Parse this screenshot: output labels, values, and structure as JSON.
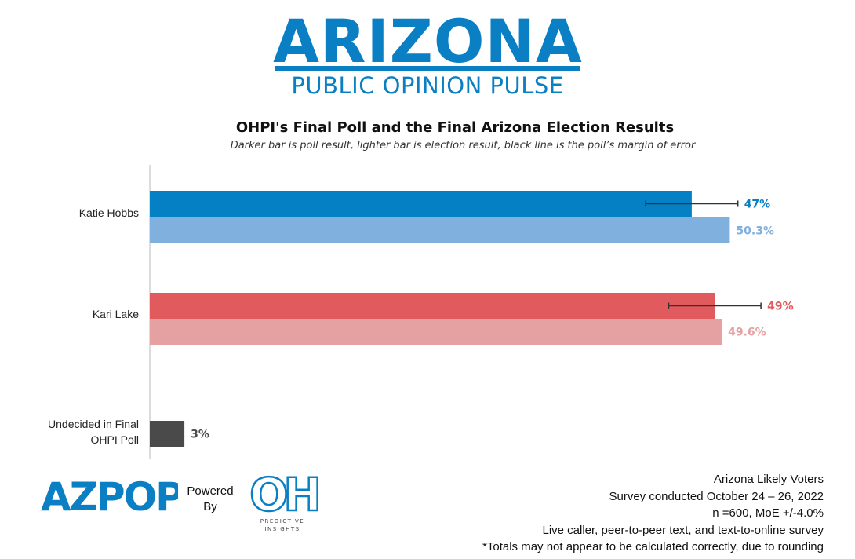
{
  "brand": {
    "title": "ARIZONA",
    "subtitle": "PUBLIC OPINION PULSE",
    "color": "#0b7fc3"
  },
  "chart_data": {
    "type": "bar",
    "orientation": "horizontal",
    "title": "OHPI's Final Poll and the Final Arizona Election Results",
    "subtitle": "Darker bar is poll result, lighter bar is election result, black line is the poll’s margin of error",
    "xlim": [
      0,
      52
    ],
    "grid": false,
    "legend": "none",
    "categories": [
      "Katie Hobbs",
      "Kari Lake",
      "Undecided in Final OHPI Poll"
    ],
    "bars": [
      {
        "category": "Katie Hobbs",
        "kind": "poll",
        "value": 47,
        "label": "47%",
        "color": "#0680c4",
        "label_color": "#0680c4",
        "error": [
          43,
          51
        ]
      },
      {
        "category": "Katie Hobbs",
        "kind": "election",
        "value": 50.3,
        "label": "50.3%",
        "color": "#80b0de",
        "label_color": "#80b0de"
      },
      {
        "category": "Kari Lake",
        "kind": "poll",
        "value": 49,
        "label": "49%",
        "color": "#e05a5e",
        "label_color": "#e05a5e",
        "error": [
          45,
          53
        ]
      },
      {
        "category": "Kari Lake",
        "kind": "election",
        "value": 49.6,
        "label": "49.6%",
        "color": "#e5a0a1",
        "label_color": "#e5a0a1"
      },
      {
        "category": "Undecided in Final OHPI Poll",
        "kind": "poll",
        "value": 3,
        "label": "3%",
        "color": "#4a4a4a",
        "label_color": "#4a4a4a"
      }
    ]
  },
  "footer": {
    "logo_text": "AZPOP",
    "powered_by": "Powered By",
    "oh_logo_text": "OH",
    "oh_caption": "PREDICTIVE INSIGHTS",
    "notes": [
      "Arizona Likely Voters",
      "Survey conducted October 24 – 26, 2022",
      "n =600, MoE +/-4.0%",
      "Live caller, peer-to-peer text, and text-to-online survey",
      "*Totals may not appear to be calculated correctly, due to rounding"
    ]
  }
}
